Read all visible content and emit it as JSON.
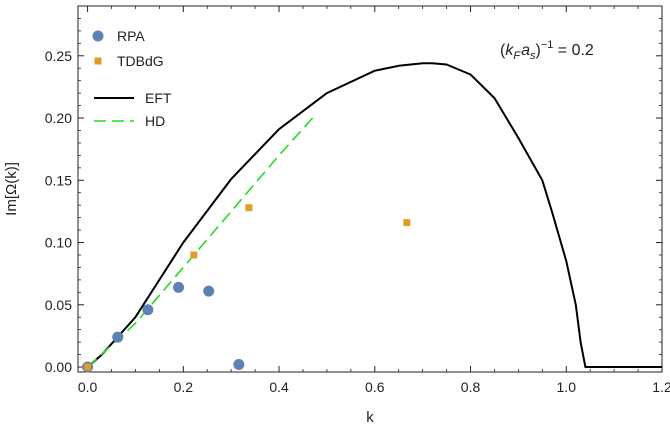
{
  "chart_data": {
    "type": "scatter",
    "xlabel": "k",
    "ylabel": "Im[Ω(k)]",
    "xlim": [
      -0.02,
      1.2
    ],
    "ylim": [
      -0.004,
      0.29
    ],
    "xticks": [
      0.0,
      0.2,
      0.4,
      0.6,
      0.8,
      1.0,
      1.2
    ],
    "xtick_labels": [
      "0.0",
      "0.2",
      "0.4",
      "0.6",
      "0.8",
      "1.0",
      "1.2"
    ],
    "yticks": [
      0.0,
      0.05,
      0.1,
      0.15,
      0.2,
      0.25
    ],
    "ytick_labels": [
      "0.00",
      "0.05",
      "0.10",
      "0.15",
      "0.20",
      "0.25"
    ],
    "grid": false,
    "legend_position": "top-left",
    "annotation": {
      "open": "(",
      "k": "k",
      "k_sub": "F",
      "a": "a",
      "a_sub": "s",
      "close": ")",
      "exp": "−1",
      "rest": " = 0.2"
    },
    "series": [
      {
        "name": "RPA",
        "kind": "scatter",
        "marker": "circle",
        "color": "#5d81b4",
        "x": [
          0.0,
          0.063,
          0.126,
          0.19,
          0.253,
          0.316
        ],
        "y": [
          0.0,
          0.024,
          0.046,
          0.064,
          0.061,
          0.002
        ]
      },
      {
        "name": "TDBdG",
        "kind": "scatter",
        "marker": "square",
        "color": "#e19c24",
        "x": [
          0.0,
          0.222,
          0.337,
          0.667
        ],
        "y": [
          0.0,
          0.09,
          0.128,
          0.116
        ]
      },
      {
        "name": "EFT",
        "kind": "line",
        "style": "solid",
        "color": "#000000",
        "x": [
          0.0,
          0.03,
          0.1,
          0.2,
          0.3,
          0.4,
          0.5,
          0.6,
          0.65,
          0.7,
          0.72,
          0.75,
          0.8,
          0.85,
          0.9,
          0.95,
          0.97,
          1.0,
          1.02,
          1.03,
          1.04,
          1.05,
          1.1,
          1.15,
          1.2
        ],
        "y": [
          0.0,
          0.01,
          0.04,
          0.1,
          0.151,
          0.191,
          0.22,
          0.238,
          0.242,
          0.244,
          0.244,
          0.243,
          0.235,
          0.216,
          0.184,
          0.15,
          0.125,
          0.085,
          0.05,
          0.02,
          0.0,
          0.0,
          0.0,
          0.0,
          0.0
        ]
      },
      {
        "name": "HD",
        "kind": "line",
        "style": "dashed",
        "color": "#22dd22",
        "x": [
          0.0,
          0.1,
          0.2,
          0.3,
          0.4,
          0.47
        ],
        "y": [
          0.0,
          0.035,
          0.08,
          0.125,
          0.17,
          0.2
        ]
      }
    ]
  }
}
